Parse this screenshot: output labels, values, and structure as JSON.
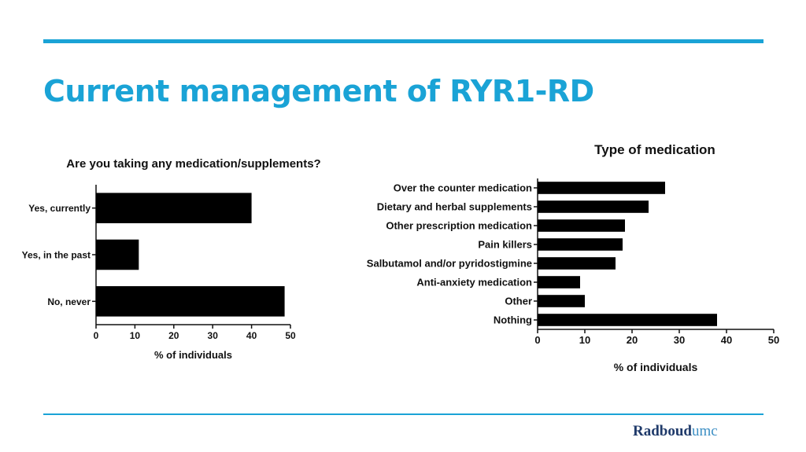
{
  "slide": {
    "title": "Current management of RYR1-RD",
    "logo": {
      "part1": "Radboud",
      "part2": "umc"
    }
  },
  "colors": {
    "accent": "#1aa3d6",
    "bar": "#000000",
    "logo_dark": "#1f3a6a",
    "logo_light": "#3d8fc4"
  },
  "chart_data": [
    {
      "type": "bar",
      "orientation": "horizontal",
      "title": "Are you taking any medication/supplements?",
      "categories": [
        "Yes, currently",
        "Yes, in the past",
        "No, never"
      ],
      "values": [
        40,
        11,
        48.5
      ],
      "xlabel": "% of individuals",
      "xlim": [
        0,
        50
      ],
      "xticks": [
        "0",
        "10",
        "20",
        "30",
        "40",
        "50"
      ],
      "grid": false,
      "legend": "none"
    },
    {
      "type": "bar",
      "orientation": "horizontal",
      "title": "Type of medication",
      "categories": [
        "Over the counter medication",
        "Dietary and herbal supplements",
        "Other prescription medication",
        "Pain killers",
        "Salbutamol and/or pyridostigmine",
        "Anti-anxiety medication",
        "Other",
        "Nothing"
      ],
      "values": [
        27,
        23.5,
        18.5,
        18,
        16.5,
        9,
        10,
        38
      ],
      "xlabel": "% of individuals",
      "xlim": [
        0,
        50
      ],
      "xticks": [
        "0",
        "10",
        "20",
        "30",
        "40",
        "50"
      ],
      "grid": false,
      "legend": "none"
    }
  ]
}
